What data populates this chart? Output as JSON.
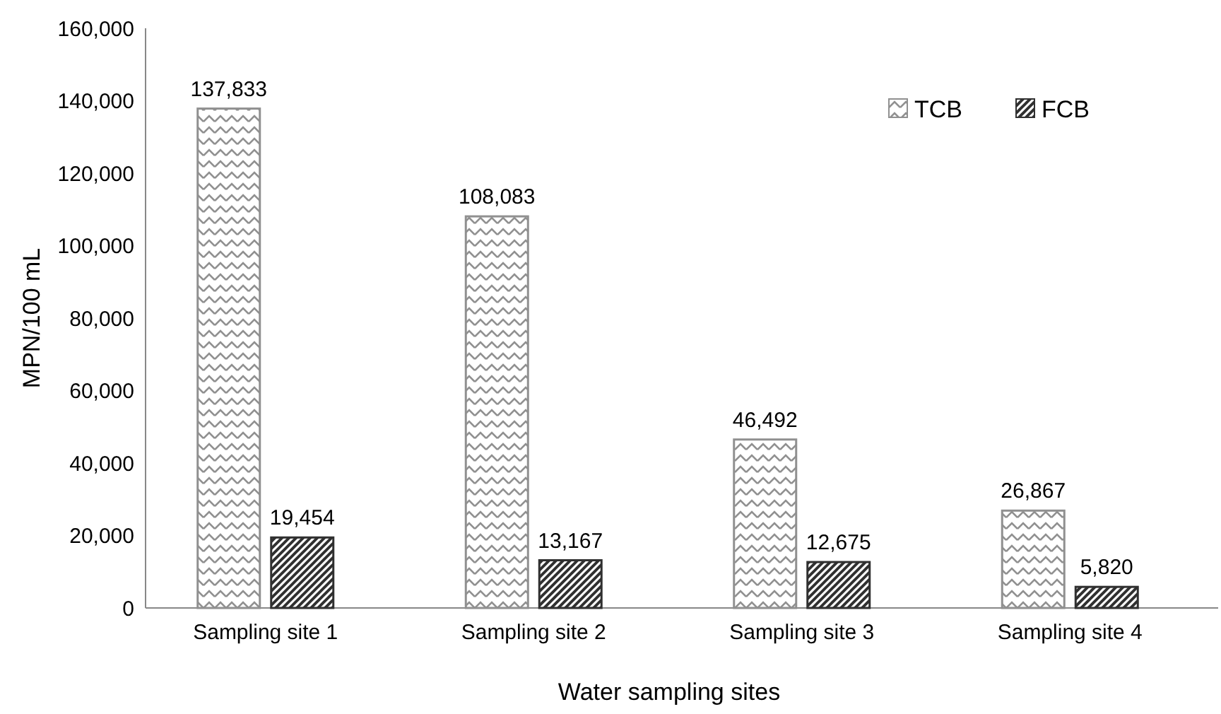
{
  "chart_data": {
    "type": "bar",
    "xlabel": "Water sampling sites",
    "ylabel": "MPN/100 mL",
    "categories": [
      "Sampling site 1",
      "Sampling site 2",
      "Sampling site 3",
      "Sampling site 4"
    ],
    "series": [
      {
        "name": "TCB",
        "color": "#909090",
        "values": [
          137833,
          108083,
          46492,
          26867
        ],
        "value_labels": [
          "137,833",
          "108,083",
          "46,492",
          "26,867"
        ]
      },
      {
        "name": "FCB",
        "color": "#303030",
        "values": [
          19454,
          13167,
          12675,
          5820
        ],
        "value_labels": [
          "19,454",
          "13,167",
          "12,675",
          "5,820"
        ]
      }
    ],
    "ylim": [
      0,
      160000
    ],
    "yticks": [
      {
        "value": 0,
        "label": "0"
      },
      {
        "value": 20000,
        "label": "20,000"
      },
      {
        "value": 40000,
        "label": "40,000"
      },
      {
        "value": 60000,
        "label": "60,000"
      },
      {
        "value": 80000,
        "label": "80,000"
      },
      {
        "value": 100000,
        "label": "100,000"
      },
      {
        "value": 120000,
        "label": "120,000"
      },
      {
        "value": 140000,
        "label": "140,000"
      },
      {
        "value": 160000,
        "label": "160,000"
      }
    ],
    "legend": "top right",
    "grid": false
  }
}
